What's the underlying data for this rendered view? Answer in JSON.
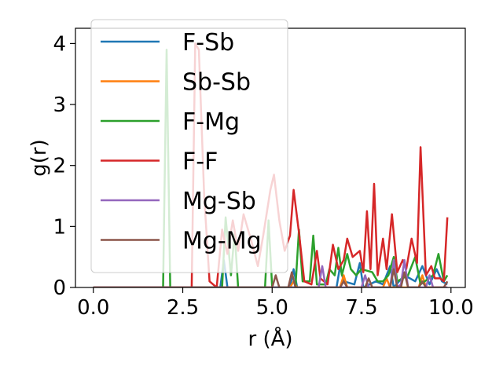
{
  "chart_data": {
    "type": "line",
    "title": "",
    "xlabel": "r (Å)",
    "ylabel": "g(r)",
    "xlim": [
      -0.5,
      10.4
    ],
    "ylim": [
      0,
      4.25
    ],
    "xticks": [
      "0.0",
      "2.5",
      "5.0",
      "7.5",
      "10.0"
    ],
    "xtick_values": [
      0,
      2.5,
      5,
      7.5,
      10
    ],
    "yticks": [
      "0",
      "1",
      "2",
      "3",
      "4"
    ],
    "ytick_values": [
      0,
      1,
      2,
      3,
      4
    ],
    "grid": false,
    "legend_position": "upper-left",
    "series": [
      {
        "name": "F-Sb",
        "color": "#1f77b4",
        "points": [
          [
            0,
            0
          ],
          [
            3.55,
            0
          ],
          [
            3.65,
            0.45
          ],
          [
            3.75,
            0
          ],
          [
            5.5,
            0
          ],
          [
            5.6,
            0.3
          ],
          [
            5.7,
            0
          ],
          [
            6.8,
            0
          ],
          [
            6.9,
            0.35
          ],
          [
            7.0,
            0.1
          ],
          [
            7.3,
            0.05
          ],
          [
            7.45,
            0.4
          ],
          [
            7.55,
            0
          ],
          [
            7.9,
            0.1
          ],
          [
            8.1,
            0.05
          ],
          [
            8.3,
            0.35
          ],
          [
            8.4,
            0
          ],
          [
            8.7,
            0.2
          ],
          [
            9.0,
            0.1
          ],
          [
            9.2,
            0.35
          ],
          [
            9.4,
            0.05
          ],
          [
            9.6,
            0.3
          ],
          [
            9.75,
            0.1
          ],
          [
            9.9,
            0.05
          ]
        ]
      },
      {
        "name": "Sb-Sb",
        "color": "#ff7f0e",
        "points": [
          [
            0,
            0
          ],
          [
            5.5,
            0
          ],
          [
            5.6,
            0.1
          ],
          [
            5.7,
            0
          ],
          [
            6.9,
            0
          ],
          [
            7.0,
            0.2
          ],
          [
            7.1,
            0
          ],
          [
            8.1,
            0
          ],
          [
            8.2,
            0.15
          ],
          [
            8.3,
            0
          ],
          [
            9.1,
            0
          ],
          [
            9.2,
            0.2
          ],
          [
            9.3,
            0
          ],
          [
            9.9,
            0
          ]
        ]
      },
      {
        "name": "F-Mg",
        "color": "#2ca02c",
        "points": [
          [
            0,
            0
          ],
          [
            1.95,
            0
          ],
          [
            2.05,
            3.9
          ],
          [
            2.15,
            0
          ],
          [
            3.6,
            0
          ],
          [
            3.7,
            1.15
          ],
          [
            3.85,
            0.2
          ],
          [
            3.95,
            0.9
          ],
          [
            4.05,
            0
          ],
          [
            4.8,
            0
          ],
          [
            4.9,
            1.1
          ],
          [
            5.0,
            0
          ],
          [
            5.65,
            0
          ],
          [
            5.75,
            0.95
          ],
          [
            5.85,
            0.1
          ],
          [
            6.05,
            0.1
          ],
          [
            6.15,
            0.85
          ],
          [
            6.25,
            0.05
          ],
          [
            6.5,
            0.05
          ],
          [
            6.6,
            0.3
          ],
          [
            6.75,
            0.2
          ],
          [
            6.85,
            0.65
          ],
          [
            6.95,
            0.2
          ],
          [
            7.1,
            0.55
          ],
          [
            7.2,
            0.3
          ],
          [
            7.35,
            0.2
          ],
          [
            7.5,
            0.3
          ],
          [
            7.8,
            0.25
          ],
          [
            7.95,
            0.1
          ],
          [
            8.1,
            0.1
          ],
          [
            8.25,
            0.2
          ],
          [
            8.4,
            0.5
          ],
          [
            8.5,
            0.1
          ],
          [
            8.8,
            0.2
          ],
          [
            9.0,
            0.5
          ],
          [
            9.15,
            0.05
          ],
          [
            9.5,
            0.2
          ],
          [
            9.65,
            0.55
          ],
          [
            9.8,
            0.1
          ],
          [
            9.9,
            0.2
          ]
        ]
      },
      {
        "name": "F-F",
        "color": "#d62728",
        "points": [
          [
            0,
            0
          ],
          [
            2.75,
            0
          ],
          [
            2.85,
            4.0
          ],
          [
            2.95,
            3.9
          ],
          [
            3.1,
            1.5
          ],
          [
            3.25,
            0.1
          ],
          [
            3.45,
            0
          ],
          [
            3.6,
            0.95
          ],
          [
            3.75,
            0.55
          ],
          [
            3.9,
            1.1
          ],
          [
            4.05,
            0.6
          ],
          [
            4.2,
            1.2
          ],
          [
            4.4,
            0.8
          ],
          [
            4.6,
            0.35
          ],
          [
            4.75,
            0.85
          ],
          [
            4.95,
            1.6
          ],
          [
            5.05,
            1.85
          ],
          [
            5.2,
            1.1
          ],
          [
            5.35,
            0.6
          ],
          [
            5.5,
            0.85
          ],
          [
            5.6,
            1.6
          ],
          [
            5.75,
            0.9
          ],
          [
            5.9,
            0.1
          ],
          [
            6.1,
            0.05
          ],
          [
            6.25,
            0.6
          ],
          [
            6.35,
            0.15
          ],
          [
            6.55,
            0.05
          ],
          [
            6.7,
            0.7
          ],
          [
            6.85,
            0.3
          ],
          [
            7.0,
            0.45
          ],
          [
            7.1,
            0.8
          ],
          [
            7.25,
            0.5
          ],
          [
            7.45,
            0.6
          ],
          [
            7.55,
            0.25
          ],
          [
            7.65,
            1.25
          ],
          [
            7.75,
            0.3
          ],
          [
            7.85,
            1.7
          ],
          [
            7.95,
            0.2
          ],
          [
            8.1,
            0.8
          ],
          [
            8.2,
            0.3
          ],
          [
            8.35,
            1.2
          ],
          [
            8.5,
            0.25
          ],
          [
            8.65,
            0.45
          ],
          [
            8.75,
            0.3
          ],
          [
            8.9,
            0.8
          ],
          [
            9.05,
            0.4
          ],
          [
            9.15,
            2.3
          ],
          [
            9.3,
            0.2
          ],
          [
            9.45,
            0.35
          ],
          [
            9.55,
            0.15
          ],
          [
            9.7,
            0.15
          ],
          [
            9.8,
            0.1
          ],
          [
            9.9,
            1.15
          ]
        ]
      },
      {
        "name": "Mg-Sb",
        "color": "#9467bd",
        "points": [
          [
            0,
            0
          ],
          [
            6.3,
            0
          ],
          [
            6.4,
            0.35
          ],
          [
            6.5,
            0
          ],
          [
            7.5,
            0
          ],
          [
            7.6,
            0.2
          ],
          [
            7.7,
            0
          ],
          [
            8.3,
            0
          ],
          [
            8.4,
            0.45
          ],
          [
            8.5,
            0
          ],
          [
            8.6,
            0.05
          ],
          [
            8.7,
            0.45
          ],
          [
            8.8,
            0
          ],
          [
            9.3,
            0
          ],
          [
            9.4,
            0.2
          ],
          [
            9.5,
            0
          ],
          [
            9.9,
            0
          ]
        ]
      },
      {
        "name": "Mg-Mg",
        "color": "#8c564b",
        "points": [
          [
            0,
            0
          ],
          [
            5.0,
            0
          ],
          [
            5.1,
            0.2
          ],
          [
            5.2,
            0
          ],
          [
            5.45,
            0
          ],
          [
            5.55,
            0.25
          ],
          [
            5.65,
            0
          ],
          [
            6.9,
            0
          ],
          [
            7.0,
            0.1
          ],
          [
            7.1,
            0
          ],
          [
            7.6,
            0
          ],
          [
            7.7,
            0.15
          ],
          [
            7.8,
            0
          ],
          [
            8.3,
            0
          ],
          [
            8.4,
            0.3
          ],
          [
            8.5,
            0
          ],
          [
            8.6,
            0
          ],
          [
            8.7,
            0.25
          ],
          [
            8.8,
            0
          ],
          [
            9.1,
            0
          ],
          [
            9.2,
            0.1
          ],
          [
            9.3,
            0
          ],
          [
            9.8,
            0
          ],
          [
            9.9,
            0.1
          ]
        ]
      }
    ]
  }
}
